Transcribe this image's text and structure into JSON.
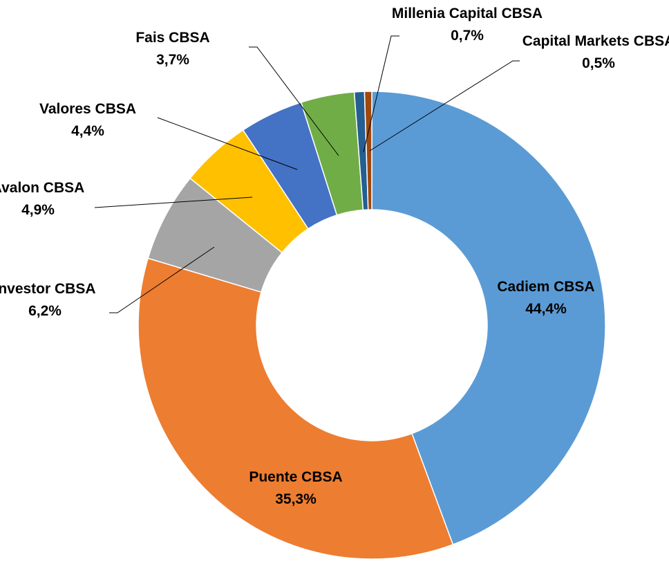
{
  "chart_data": {
    "type": "donut",
    "categories": [
      "Cadiem CBSA",
      "Puente CBSA",
      "Investor CBSA",
      "Avalon CBSA",
      "Valores CBSA",
      "Fais CBSA",
      "Millenia Capital CBSA",
      "Capital Markets CBSA"
    ],
    "values": [
      44.4,
      35.3,
      6.2,
      4.9,
      4.4,
      3.7,
      0.7,
      0.5
    ],
    "value_labels": [
      "44,4%",
      "35,3%",
      "6,2%",
      "4,9%",
      "4,4%",
      "3,7%",
      "0,7%",
      "0,5%"
    ],
    "colors": [
      "#5b9bd5",
      "#ed7d31",
      "#a5a5a5",
      "#ffc000",
      "#4472c4",
      "#70ad47",
      "#255e91",
      "#9e480e"
    ]
  }
}
